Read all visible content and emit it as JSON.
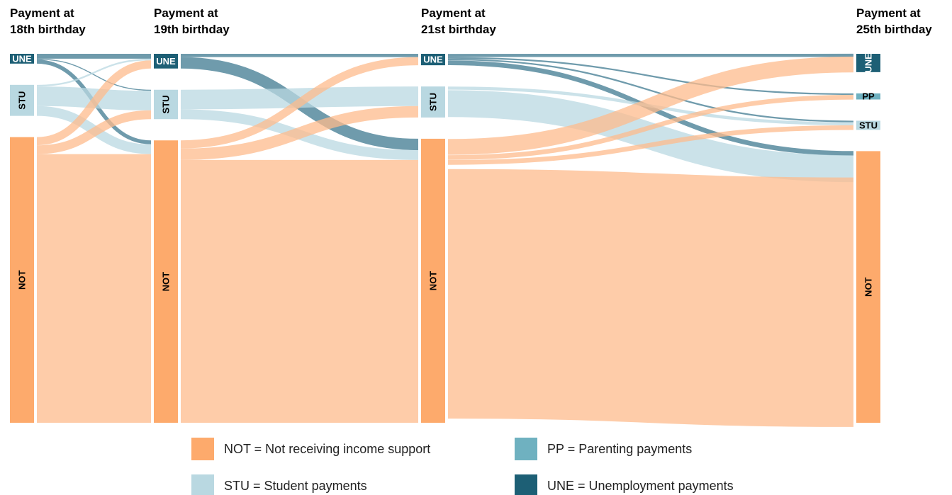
{
  "chart_data": {
    "type": "sankey",
    "stages": [
      {
        "title_lines": [
          "Payment at",
          "18th birthday"
        ],
        "nodes": [
          {
            "label": "UNE",
            "value": 3,
            "color": "#1d5f75",
            "text_color": "#ffffff",
            "link_color": "#3f7a90"
          },
          {
            "label": "STU",
            "value": 9.5,
            "color": "#b9d8e1",
            "text_color": "#000000",
            "link_color": "#b9d8e1"
          },
          {
            "label": "NOT",
            "value": 87.5,
            "color": "#fdaa6c",
            "text_color": "#000000",
            "link_color": "#fdbb8c"
          }
        ]
      },
      {
        "title_lines": [
          "Payment at",
          "19th birthday"
        ],
        "nodes": [
          {
            "label": "UNE",
            "value": 4.5,
            "color": "#1d5f75",
            "text_color": "#ffffff",
            "link_color": "#3f7a90"
          },
          {
            "label": "STU",
            "value": 9,
            "color": "#b9d8e1",
            "text_color": "#000000",
            "link_color": "#b9d8e1"
          },
          {
            "label": "NOT",
            "value": 86.5,
            "color": "#fdaa6c",
            "text_color": "#000000",
            "link_color": "#fdbb8c"
          }
        ]
      },
      {
        "title_lines": [
          "Payment at",
          "21st birthday"
        ],
        "nodes": [
          {
            "label": "UNE",
            "value": 3.5,
            "color": "#1d5f75",
            "text_color": "#ffffff",
            "link_color": "#3f7a90"
          },
          {
            "label": "STU",
            "value": 9.5,
            "color": "#b9d8e1",
            "text_color": "#000000",
            "link_color": "#b9d8e1"
          },
          {
            "label": "NOT",
            "value": 87,
            "color": "#fdaa6c",
            "text_color": "#000000",
            "link_color": "#fdbb8c"
          }
        ]
      },
      {
        "title_lines": [
          "Payment at",
          "25th birthday"
        ],
        "nodes": [
          {
            "label": "UNE",
            "value": 6,
            "color": "#1d5f75",
            "text_color": "#ffffff",
            "link_color": "#3f7a90"
          },
          {
            "label": "PP",
            "value": 2,
            "color": "#6fb1c0",
            "text_color": "#000000",
            "link_color": "#6fb1c0"
          },
          {
            "label": "STU",
            "value": 3,
            "color": "#b9d8e1",
            "text_color": "#000000",
            "link_color": "#b9d8e1"
          },
          {
            "label": "NOT",
            "value": 89,
            "color": "#fdaa6c",
            "text_color": "#000000",
            "link_color": "#fdbb8c"
          }
        ]
      }
    ],
    "links": [
      {
        "stage": 0,
        "source": 0,
        "target": 0,
        "value": 1.5
      },
      {
        "stage": 0,
        "source": 0,
        "target": 1,
        "value": 0.3
      },
      {
        "stage": 0,
        "source": 0,
        "target": 2,
        "value": 1.2
      },
      {
        "stage": 0,
        "source": 1,
        "target": 0,
        "value": 0.5
      },
      {
        "stage": 0,
        "source": 1,
        "target": 1,
        "value": 6
      },
      {
        "stage": 0,
        "source": 1,
        "target": 2,
        "value": 3
      },
      {
        "stage": 0,
        "source": 2,
        "target": 0,
        "value": 2.5
      },
      {
        "stage": 0,
        "source": 2,
        "target": 1,
        "value": 2.7
      },
      {
        "stage": 0,
        "source": 2,
        "target": 2,
        "value": 82.3
      },
      {
        "stage": 1,
        "source": 0,
        "target": 0,
        "value": 1
      },
      {
        "stage": 1,
        "source": 0,
        "target": 2,
        "value": 3.5
      },
      {
        "stage": 1,
        "source": 1,
        "target": 1,
        "value": 6
      },
      {
        "stage": 1,
        "source": 1,
        "target": 2,
        "value": 3
      },
      {
        "stage": 1,
        "source": 2,
        "target": 0,
        "value": 2.5
      },
      {
        "stage": 1,
        "source": 2,
        "target": 1,
        "value": 3.5
      },
      {
        "stage": 1,
        "source": 2,
        "target": 2,
        "value": 80.5
      },
      {
        "stage": 2,
        "source": 0,
        "target": 0,
        "value": 1
      },
      {
        "stage": 2,
        "source": 0,
        "target": 1,
        "value": 0.5
      },
      {
        "stage": 2,
        "source": 0,
        "target": 2,
        "value": 0.5
      },
      {
        "stage": 2,
        "source": 0,
        "target": 3,
        "value": 1.5
      },
      {
        "stage": 2,
        "source": 1,
        "target": 2,
        "value": 1
      },
      {
        "stage": 2,
        "source": 1,
        "target": 3,
        "value": 8.5
      },
      {
        "stage": 2,
        "source": 2,
        "target": 0,
        "value": 5
      },
      {
        "stage": 2,
        "source": 2,
        "target": 1,
        "value": 1.5
      },
      {
        "stage": 2,
        "source": 2,
        "target": 2,
        "value": 1.5
      },
      {
        "stage": 2,
        "source": 2,
        "target": 3,
        "value": 79
      }
    ],
    "legend": [
      {
        "label": "NOT = Not receiving income support",
        "color": "#fdaa6c"
      },
      {
        "label": "PP = Parenting payments",
        "color": "#6fb1c0"
      },
      {
        "label": "STU = Student payments",
        "color": "#b9d8e1"
      },
      {
        "label": "UNE = Unemployment payments",
        "color": "#1d5f75"
      }
    ]
  }
}
